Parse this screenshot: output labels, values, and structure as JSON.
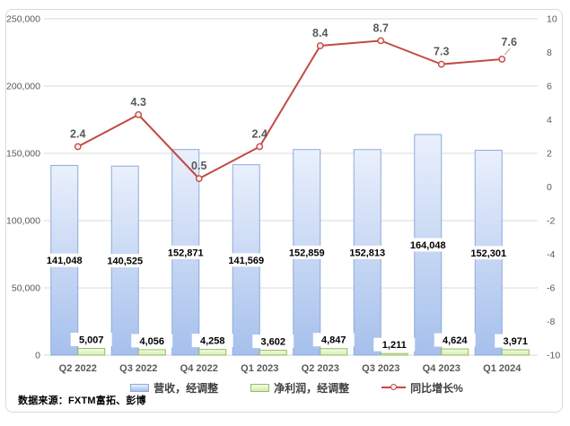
{
  "chart_data": {
    "type": "bar",
    "subtype": "combo-bar-line",
    "title": "",
    "categories": [
      "Q2 2022",
      "Q3 2022",
      "Q4 2022",
      "Q1 2023",
      "Q2 2023",
      "Q3 2023",
      "Q4 2023",
      "Q1 2024"
    ],
    "series": [
      {
        "name": "营收，经调整",
        "chart_type": "bar",
        "axis": "left",
        "values": [
          141048,
          140525,
          152871,
          141569,
          152859,
          152813,
          164048,
          152301
        ],
        "labels": [
          "141,048",
          "140,525",
          "152,871",
          "141,569",
          "152,859",
          "152,813",
          "164,048",
          "152,301"
        ]
      },
      {
        "name": "净利润，经调整",
        "chart_type": "bar",
        "axis": "left",
        "values": [
          5007,
          4056,
          4258,
          3602,
          4847,
          1211,
          4624,
          3971
        ],
        "labels": [
          "5,007",
          "4,056",
          "4,258",
          "3,602",
          "4,847",
          "1,211",
          "4,624",
          "3,971"
        ]
      },
      {
        "name": "同比增长%",
        "chart_type": "line",
        "axis": "right",
        "values": [
          2.4,
          4.3,
          0.5,
          2.4,
          8.4,
          8.7,
          7.3,
          7.6
        ],
        "labels": [
          "2.4",
          "4.3",
          "0.5",
          "2.4",
          "8.4",
          "8.7",
          "7.3",
          "7.6"
        ]
      }
    ],
    "left_axis": {
      "min": 0,
      "max": 250000,
      "step": 50000,
      "tick_labels": [
        "0",
        "50,000",
        "100,000",
        "150,000",
        "200,000",
        "250,000"
      ]
    },
    "right_axis": {
      "min": -10,
      "max": 10,
      "step": 2,
      "tick_labels": [
        "-10",
        "-8",
        "-6",
        "-4",
        "-2",
        "0",
        "2",
        "4",
        "6",
        "8",
        "10"
      ]
    },
    "grid": true,
    "legend_position": "bottom"
  },
  "source_note": "数据来源：FXTM富拓、彭博",
  "colors": {
    "revenue_fill_top": "#eaf0fc",
    "revenue_fill_bottom": "#a6c0ec",
    "revenue_border": "#8eaadb",
    "profit_fill_top": "#f3fbe7",
    "profit_fill_bottom": "#d3edb4",
    "profit_border": "#9aba5a",
    "growth_line": "#c24a43",
    "marker_fill": "#fdf0ef",
    "grid": "#d9d9d9",
    "axis_text": "#595959",
    "category_text": "#595959",
    "bar_label_text": "#000000",
    "line_label_text": "#595959",
    "label_background": "#ffffff",
    "leader_line": "#a6a6a6",
    "frame_border": "#d9d9d9",
    "legend_text": "#404040"
  }
}
